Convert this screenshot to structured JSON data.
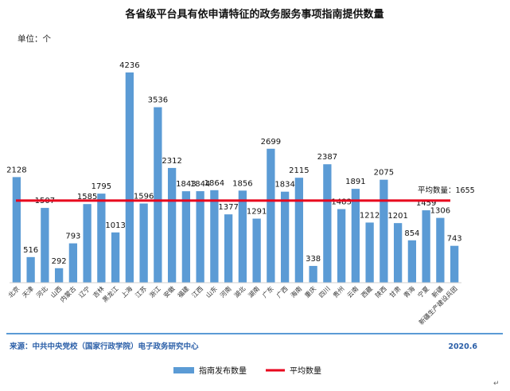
{
  "chart_data": {
    "type": "bar",
    "title": "各省级平台具有依申请特征的政务服务事项指南提供数量",
    "unit_label": "单位：个",
    "categories": [
      "北京",
      "天津",
      "河北",
      "山西",
      "内蒙古",
      "辽宁",
      "吉林",
      "黑龙江",
      "上海",
      "江苏",
      "浙江",
      "安徽",
      "福建",
      "江西",
      "山东",
      "河南",
      "湖北",
      "湖南",
      "广东",
      "广西",
      "海南",
      "重庆",
      "四川",
      "贵州",
      "云南",
      "西藏",
      "陕西",
      "甘肃",
      "青海",
      "宁夏",
      "新疆",
      "新疆生产建设兵团"
    ],
    "series": [
      {
        "name": "指南发布数量",
        "color": "#5b9bd5",
        "values": [
          2128,
          516,
          1507,
          292,
          793,
          1585,
          1795,
          1013,
          4236,
          1596,
          3536,
          2312,
          1843,
          1844,
          1864,
          1377,
          1856,
          1291,
          2699,
          1834,
          2115,
          338,
          2387,
          1483,
          1891,
          1212,
          2075,
          1201,
          854,
          1459,
          1306,
          743
        ]
      },
      {
        "name": "平均数量",
        "color": "#e8001c",
        "value": 1655,
        "label": "平均数量：1655"
      }
    ],
    "ylim": [
      0,
      4236
    ],
    "grid": false,
    "legend_position": "bottom",
    "source": "来源：中共中央党校（国家行政学院）电子政务研究中心",
    "date": "2020.6",
    "corner_glyph": "↵"
  }
}
